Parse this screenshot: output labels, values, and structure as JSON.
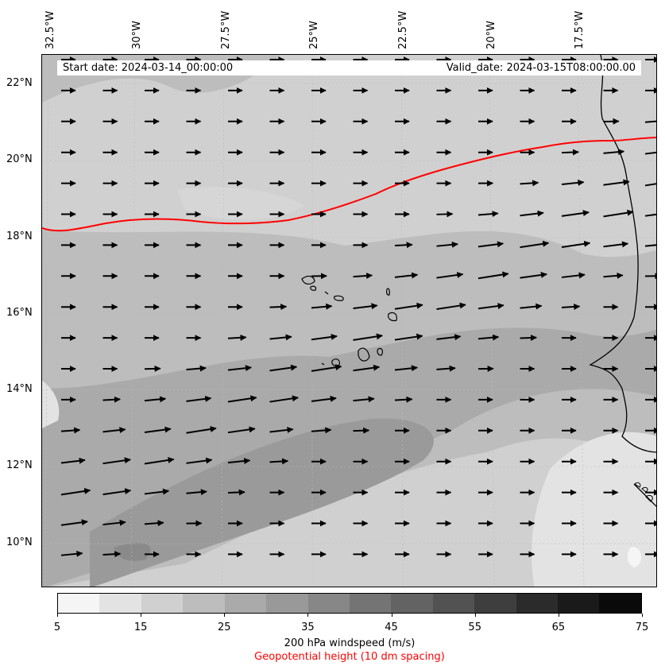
{
  "header": {
    "start_date": "Start date: 2024-03-14_00:00:00",
    "valid_date": "Valid_date: 2024-03-15T08:00:00.00"
  },
  "axes": {
    "lon_labels": [
      "32.5°W",
      "30°W",
      "27.5°W",
      "25°W",
      "22.5°W",
      "20°W",
      "17.5°W"
    ],
    "lat_labels": [
      "22°N",
      "20°N",
      "18°N",
      "16°N",
      "14°N",
      "12°N",
      "10°N"
    ]
  },
  "colorbar": {
    "ticks": [
      "5",
      "15",
      "25",
      "35",
      "45",
      "55",
      "65",
      "75"
    ],
    "colors": [
      "#f5f5f5",
      "#e3e3e3",
      "#d0d0d0",
      "#bdbdbd",
      "#aaaaaa",
      "#999999",
      "#878787",
      "#747474",
      "#636363",
      "#525252",
      "#3e3e3e",
      "#2b2b2b",
      "#1a1a1a",
      "#0a0a0a"
    ],
    "label": "200 hPa windspeed (m/s)"
  },
  "geopotential_label": "Geopotential height (10 dm spacing)",
  "contour_color": "#ff0000"
}
